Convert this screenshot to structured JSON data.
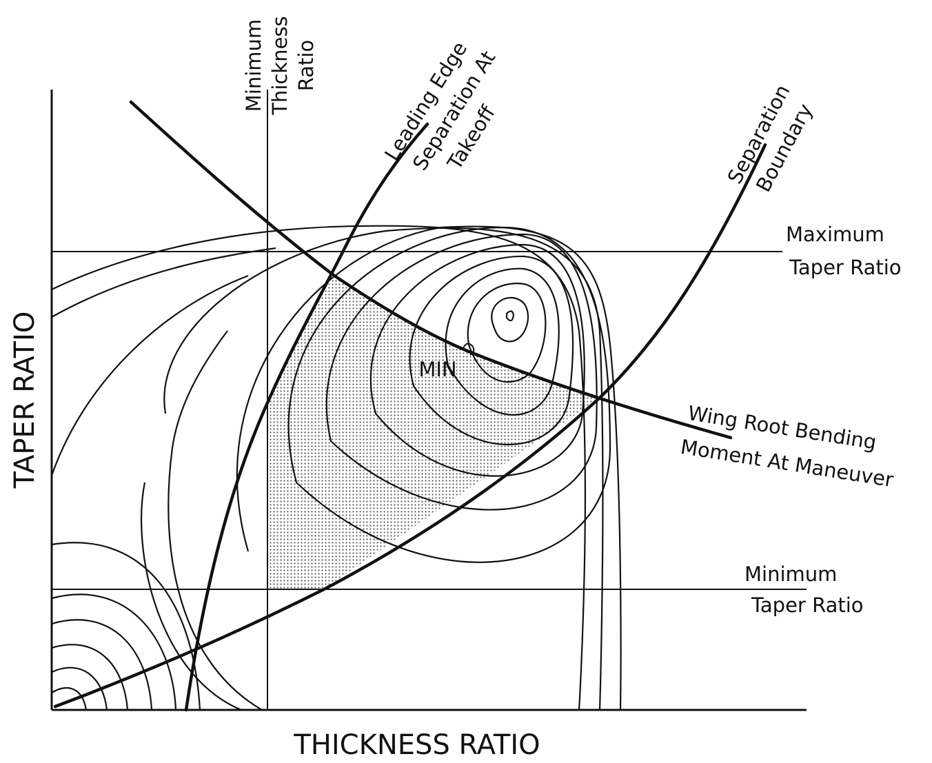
{
  "y_axis_label": "TAPER RATIO",
  "x_axis_label": "THICKNESS RATIO",
  "labels": {
    "min_thickness": [
      "Minimum",
      "Thickness",
      "Ratio"
    ],
    "leading_edge": [
      "Leading Edge",
      "Separation At",
      "Takeoff"
    ],
    "separation_boundary": [
      "Separation",
      "Boundary"
    ],
    "max_taper": [
      "Maximum",
      "Taper Ratio"
    ],
    "wing_root": [
      "Wing Root Bending",
      "Moment At Maneuver"
    ],
    "min_taper": [
      "Minimum",
      "Taper Ratio"
    ],
    "min": "MIN"
  }
}
